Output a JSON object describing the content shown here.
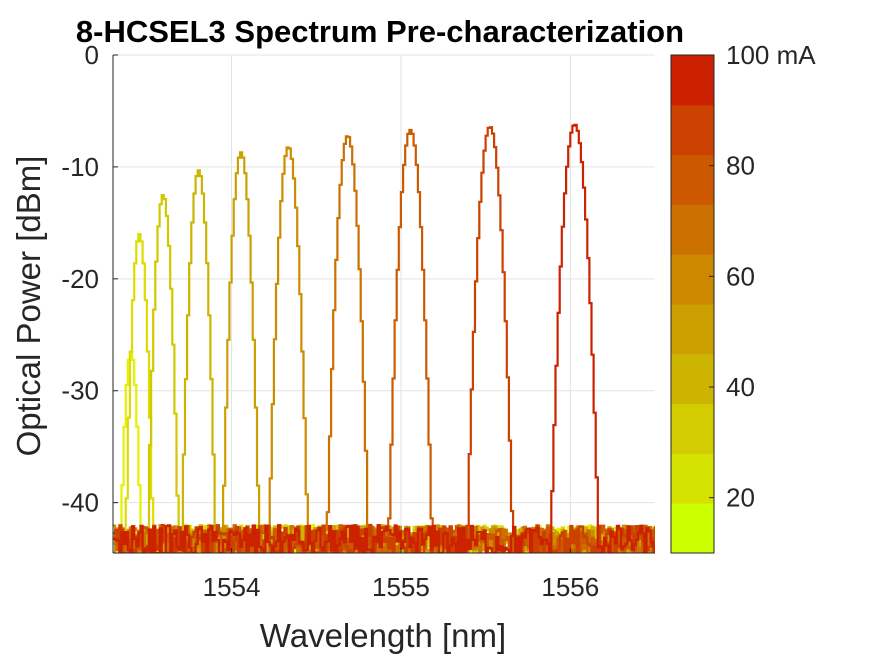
{
  "chart_data": {
    "type": "line",
    "title": "8-HCSEL3 Spectrum Pre-characterization",
    "xlabel": "Wavelength [nm]",
    "ylabel": "Optical Power [dBm]",
    "xlim": [
      1553.3,
      1556.5
    ],
    "ylim": [
      -44.5,
      0
    ],
    "xticks": [
      1554,
      1555,
      1556
    ],
    "xtick_labels": [
      "1554",
      "1555",
      "1556"
    ],
    "yticks": [
      0,
      -10,
      -20,
      -30,
      -40
    ],
    "ytick_labels": [
      "0",
      "-10",
      "-20",
      "-30",
      "-40"
    ],
    "grid": true,
    "noise_floor_dbm": -43.5,
    "series": [
      {
        "current_ma": 10,
        "peak_wavelength_nm": 1553.4,
        "peak_power_dbm": -26.5,
        "color": "#e6f000"
      },
      {
        "current_ma": 20,
        "peak_wavelength_nm": 1553.45,
        "peak_power_dbm": -16.0,
        "color": "#dcdc00"
      },
      {
        "current_ma": 30,
        "peak_wavelength_nm": 1553.59,
        "peak_power_dbm": -12.5,
        "color": "#d2c800"
      },
      {
        "current_ma": 40,
        "peak_wavelength_nm": 1553.8,
        "peak_power_dbm": -10.3,
        "color": "#cdb400"
      },
      {
        "current_ma": 50,
        "peak_wavelength_nm": 1554.05,
        "peak_power_dbm": -8.7,
        "color": "#cca000"
      },
      {
        "current_ma": 60,
        "peak_wavelength_nm": 1554.33,
        "peak_power_dbm": -8.2,
        "color": "#cc8c00"
      },
      {
        "current_ma": 70,
        "peak_wavelength_nm": 1554.68,
        "peak_power_dbm": -7.2,
        "color": "#cc7000"
      },
      {
        "current_ma": 80,
        "peak_wavelength_nm": 1555.05,
        "peak_power_dbm": -6.7,
        "color": "#cc5a00"
      },
      {
        "current_ma": 90,
        "peak_wavelength_nm": 1555.52,
        "peak_power_dbm": -6.4,
        "color": "#cc4000"
      },
      {
        "current_ma": 100,
        "peak_wavelength_nm": 1556.02,
        "peak_power_dbm": -6.2,
        "color": "#cc2200"
      }
    ],
    "colorbar": {
      "range": [
        10,
        100
      ],
      "ticks": [
        20,
        40,
        60,
        80,
        100
      ],
      "tick_labels": [
        "20",
        "40",
        "60",
        "80",
        "100 mA"
      ],
      "colors": [
        "#ccff00",
        "#d6e300",
        "#d2cc00",
        "#ccb400",
        "#cca000",
        "#cc8800",
        "#cc7000",
        "#cc5800",
        "#cc4000",
        "#cc2000"
      ]
    }
  }
}
